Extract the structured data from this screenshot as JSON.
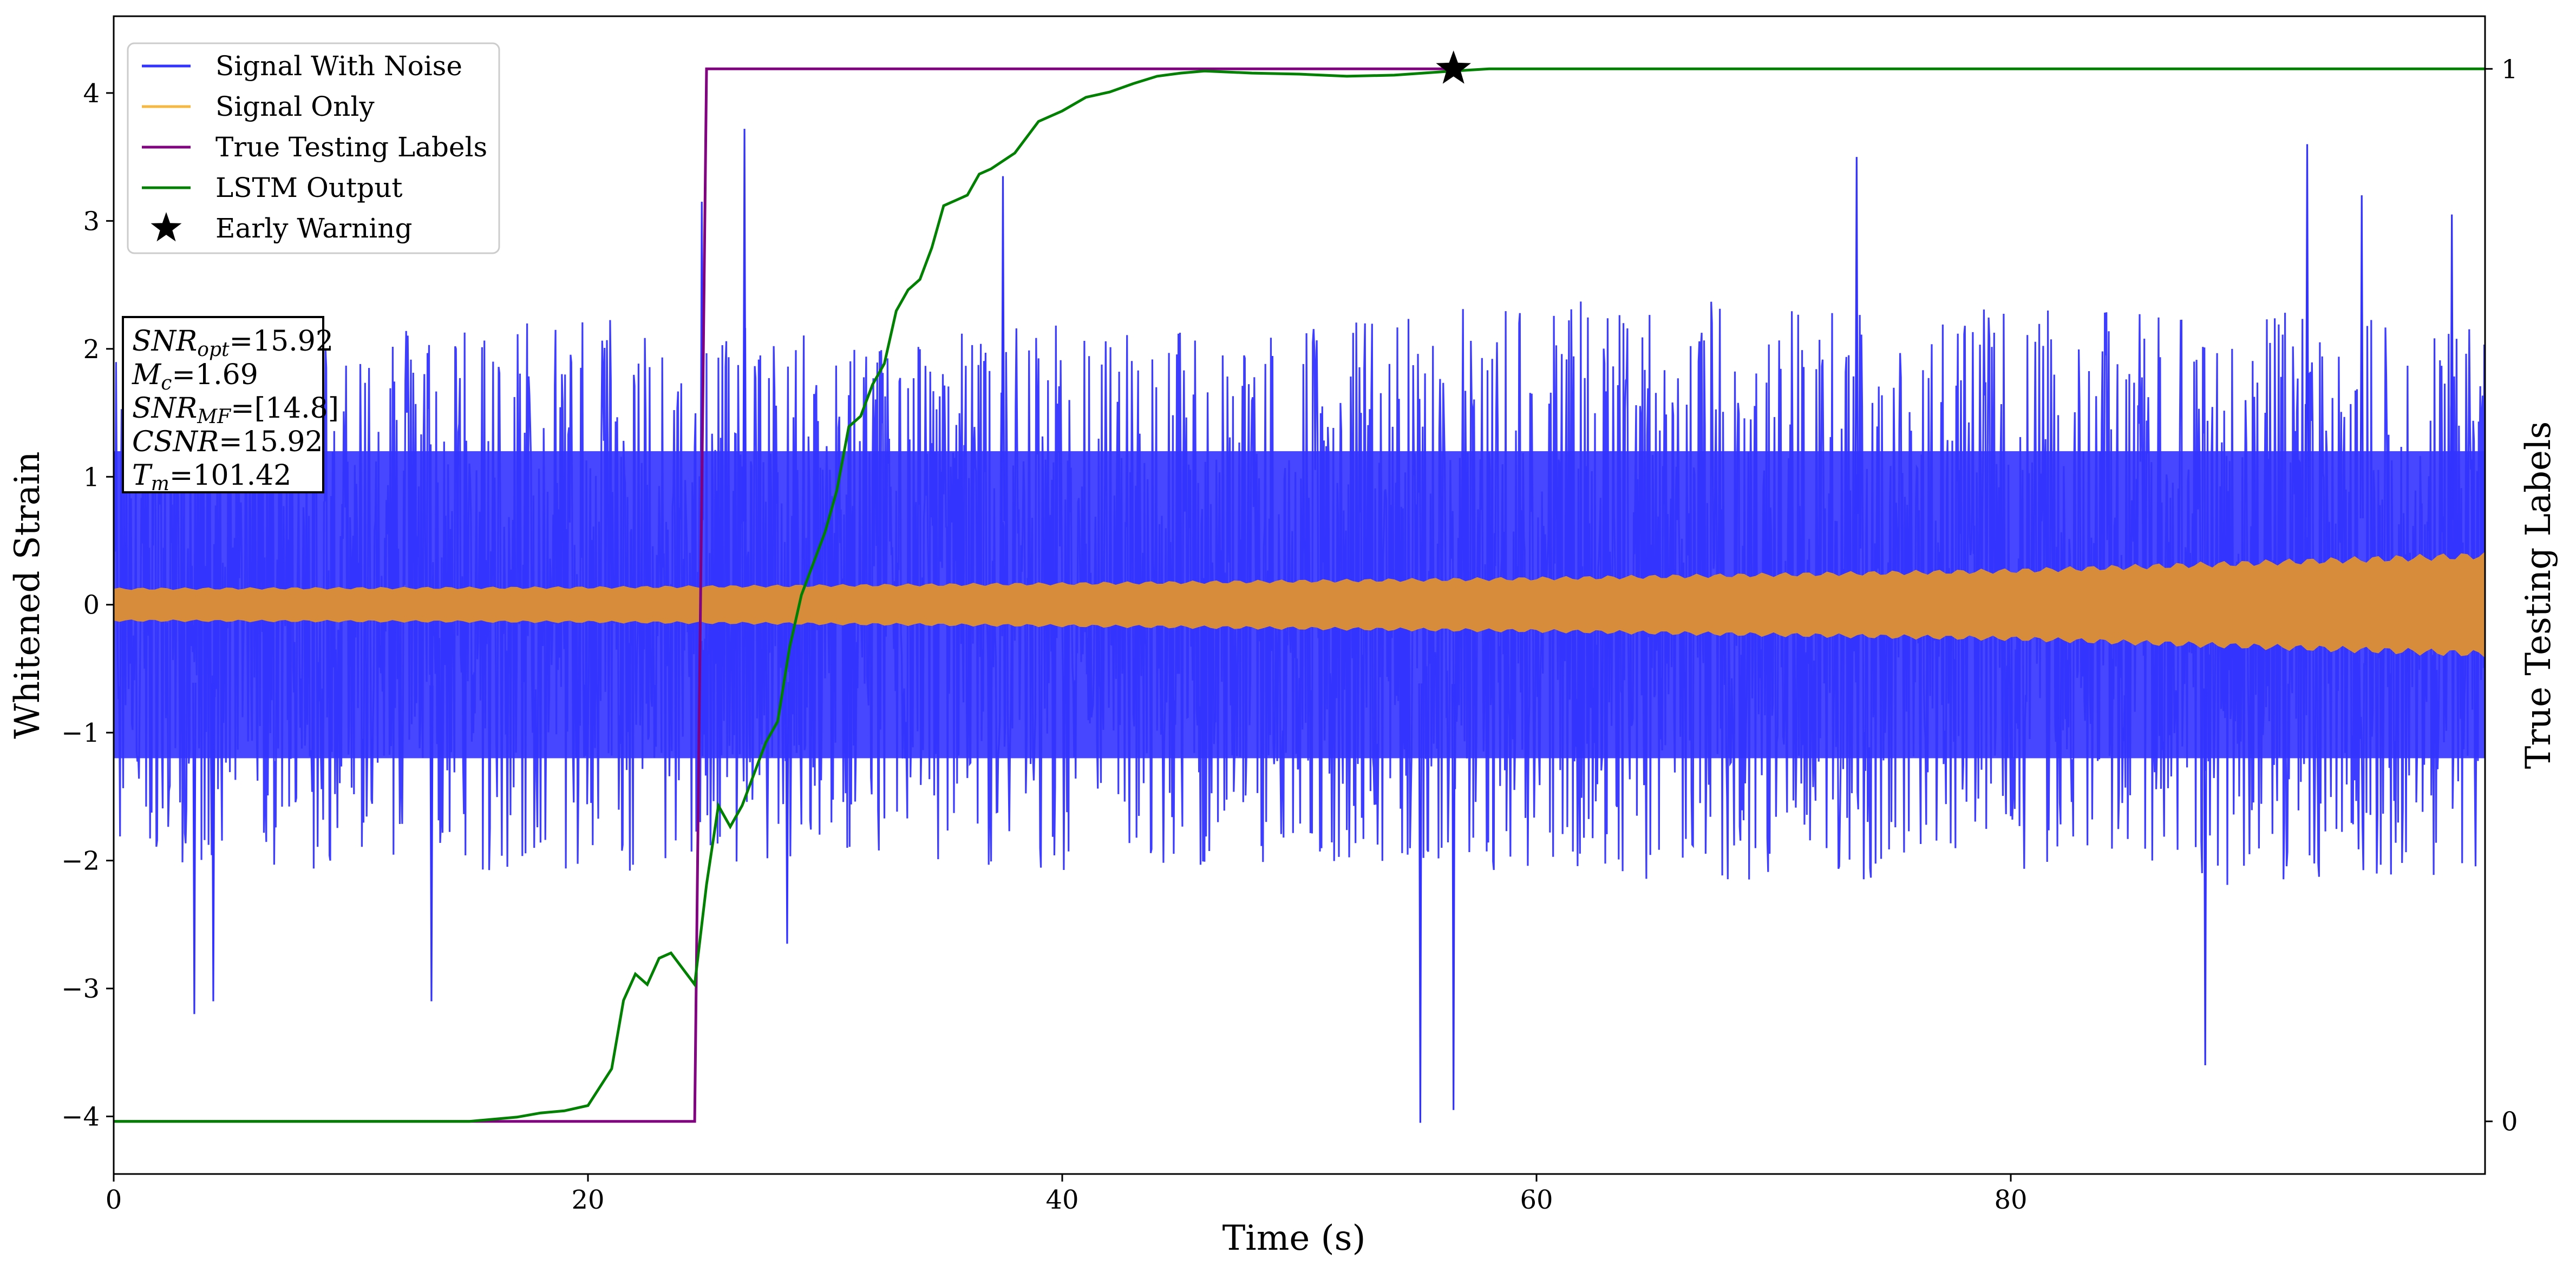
{
  "chart_data": {
    "type": "line",
    "xlabel": "Time (s)",
    "ylabel_left": "Whitened Strain",
    "ylabel_right": "True Testing Labels",
    "xlim": [
      0,
      100
    ],
    "ylim_left": [
      -4.45,
      4.6
    ],
    "ylim_right": [
      -0.05,
      1.05
    ],
    "x_ticks": [
      0,
      20,
      40,
      60,
      80
    ],
    "x_tick_labels": [
      "0",
      "20",
      "40",
      "60",
      "80"
    ],
    "y_left_ticks": [
      -4,
      -3,
      -2,
      -1,
      0,
      1,
      2,
      3,
      4
    ],
    "y_left_tick_labels": [
      "−4",
      "−3",
      "−2",
      "−1",
      "0",
      "1",
      "2",
      "3",
      "4"
    ],
    "y_right_ticks": [
      0,
      1
    ],
    "y_right_tick_labels": [
      "0",
      "1"
    ],
    "grid": false,
    "legend_position": "top-left",
    "legend": [
      {
        "name": "Signal With Noise",
        "color": "#3333ff",
        "kind": "line"
      },
      {
        "name": "Signal Only",
        "color": "#f5b942",
        "kind": "line"
      },
      {
        "name": "True Testing Labels",
        "color": "#800080",
        "kind": "line"
      },
      {
        "name": "LSTM Output",
        "color": "#008000",
        "kind": "line"
      },
      {
        "name": "Early Warning",
        "color": "#000000",
        "kind": "star"
      }
    ],
    "signal_with_noise": {
      "color": "#3333ff",
      "axis": "left",
      "envelope": {
        "x": [
          0,
          10,
          20,
          30,
          40,
          50,
          60,
          70,
          80,
          90,
          100
        ],
        "upper_typical": [
          2.0,
          2.2,
          2.3,
          2.1,
          2.2,
          2.2,
          2.4,
          2.4,
          2.3,
          2.3,
          2.2
        ],
        "lower_typical": [
          -2.0,
          -2.1,
          -2.1,
          -2.0,
          -2.1,
          -2.0,
          -2.1,
          -2.2,
          -2.1,
          -2.2,
          -2.1
        ],
        "dense_band": [
          1.2,
          -1.2
        ]
      },
      "peaks": [
        {
          "x": 3.4,
          "y": -3.2
        },
        {
          "x": 4.2,
          "y": -3.1
        },
        {
          "x": 13.4,
          "y": -3.1
        },
        {
          "x": 24.8,
          "y": 3.15
        },
        {
          "x": 26.6,
          "y": 3.72
        },
        {
          "x": 28.4,
          "y": -2.65
        },
        {
          "x": 37.5,
          "y": 3.35
        },
        {
          "x": 55.1,
          "y": -4.05
        },
        {
          "x": 56.5,
          "y": -3.95
        },
        {
          "x": 73.5,
          "y": 3.5
        },
        {
          "x": 88.2,
          "y": -3.6
        },
        {
          "x": 92.5,
          "y": 3.6
        },
        {
          "x": 94.8,
          "y": 3.2
        },
        {
          "x": 98.6,
          "y": 3.05
        }
      ]
    },
    "signal_only": {
      "color": "#d68c3a",
      "axis": "left",
      "x": [
        0,
        20,
        40,
        60,
        80,
        100
      ],
      "amplitude": [
        0.12,
        0.13,
        0.16,
        0.2,
        0.26,
        0.38
      ]
    },
    "true_testing_labels": {
      "color": "#800080",
      "axis": "right",
      "x": [
        0,
        24.5,
        25.0,
        56.5
      ],
      "y": [
        0,
        0,
        1,
        1
      ]
    },
    "lstm_output": {
      "color": "#008000",
      "axis": "right",
      "x": [
        0,
        15,
        17,
        18,
        19,
        20,
        21,
        21.5,
        22,
        22.5,
        23,
        23.5,
        24,
        24.5,
        25,
        25.5,
        26,
        26.5,
        27,
        27.5,
        28,
        28.5,
        29,
        29.5,
        30,
        30.5,
        31,
        31.5,
        32,
        32.5,
        33,
        33.5,
        34,
        34.5,
        35,
        35.5,
        36,
        36.5,
        37,
        38,
        39,
        40,
        41,
        42,
        43,
        44,
        45,
        46,
        48,
        50,
        52,
        54,
        56.5,
        58,
        60,
        100
      ],
      "y": [
        0,
        0,
        0.004,
        0.008,
        0.01,
        0.015,
        0.05,
        0.115,
        0.14,
        0.13,
        0.155,
        0.16,
        0.145,
        0.13,
        0.225,
        0.3,
        0.28,
        0.3,
        0.33,
        0.36,
        0.38,
        0.45,
        0.5,
        0.53,
        0.56,
        0.6,
        0.66,
        0.67,
        0.7,
        0.72,
        0.77,
        0.79,
        0.8,
        0.83,
        0.87,
        0.875,
        0.88,
        0.9,
        0.905,
        0.92,
        0.95,
        0.96,
        0.973,
        0.978,
        0.986,
        0.993,
        0.996,
        0.998,
        0.996,
        0.995,
        0.993,
        0.994,
        0.998,
        1.0,
        1.0,
        1.0
      ]
    },
    "early_warning": {
      "x": 56.5,
      "y": 1.0,
      "axis": "right",
      "color": "#000000"
    },
    "annotation": {
      "lines": [
        {
          "name": "SNR",
          "sub": "opt",
          "value": "=15.92"
        },
        {
          "name": "M",
          "sub": "c",
          "value": "=1.69"
        },
        {
          "name": "SNR",
          "sub": "MF",
          "value": "=[14.8]"
        },
        {
          "name": "CSNR",
          "sub": "",
          "value": "=15.92"
        },
        {
          "name": "T",
          "sub": "m",
          "value": "=101.42"
        }
      ]
    }
  }
}
